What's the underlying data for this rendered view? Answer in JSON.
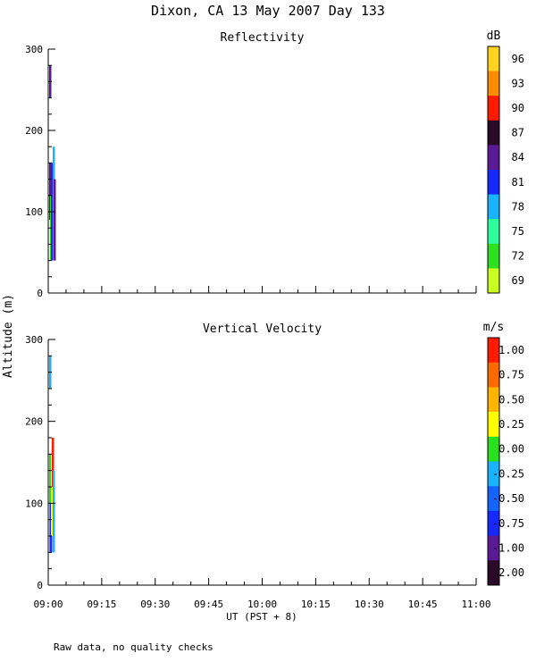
{
  "title": "Dixon, CA 13 May 2007  Day 133",
  "ylabel": "Altitude (m)",
  "xlabel": "UT  (PST + 8)",
  "footnote": "Raw data, no quality checks",
  "chart_data": [
    {
      "type": "heatmap",
      "title": "Reflectivity",
      "unit": "dB",
      "x_ticks": [
        "09:00",
        "09:15",
        "09:30",
        "09:45",
        "10:00",
        "10:15",
        "10:30",
        "10:45",
        "11:00"
      ],
      "xlim": [
        "09:00",
        "11:00"
      ],
      "ylim": [
        0,
        300
      ],
      "y_ticks": [
        0,
        100,
        200,
        300
      ],
      "colorbar": {
        "labels": [
          "96",
          "93",
          "90",
          "87",
          "84",
          "81",
          "78",
          "75",
          "72",
          "69"
        ],
        "colors": [
          "#ffd21e",
          "#ff8c00",
          "#ff1a00",
          "#2a0a28",
          "#5a1a96",
          "#1428ff",
          "#19b4ff",
          "#2dff9b",
          "#2de11e",
          "#c8ff1e"
        ]
      },
      "segments": [
        {
          "time": "09:00:30",
          "alt_bottom": 240,
          "alt_top": 280,
          "color": "#5a1a96"
        },
        {
          "time": "09:00:30",
          "alt_bottom": 90,
          "alt_top": 160,
          "color": "#5a1a96"
        },
        {
          "time": "09:00:45",
          "alt_bottom": 40,
          "alt_top": 120,
          "color": "#2de11e"
        },
        {
          "time": "09:01:00",
          "alt_bottom": 40,
          "alt_top": 160,
          "color": "#1428ff"
        },
        {
          "time": "09:01:30",
          "alt_bottom": 40,
          "alt_top": 180,
          "color": "#19b4ff"
        },
        {
          "time": "09:01:45",
          "alt_bottom": 40,
          "alt_top": 140,
          "color": "#5a1a96"
        }
      ]
    },
    {
      "type": "heatmap",
      "title": "Vertical Velocity",
      "unit": "m/s",
      "x_ticks": [
        "09:00",
        "09:15",
        "09:30",
        "09:45",
        "10:00",
        "10:15",
        "10:30",
        "10:45",
        "11:00"
      ],
      "xlim": [
        "09:00",
        "11:00"
      ],
      "ylim": [
        0,
        300
      ],
      "y_ticks": [
        0,
        100,
        200,
        300
      ],
      "colorbar": {
        "labels": [
          "1.00",
          "0.75",
          "0.50",
          "0.25",
          "0.00",
          "-0.25",
          "-0.50",
          "-0.75",
          "-1.00",
          "-2.00"
        ],
        "colors": [
          "#ff1a00",
          "#ff6a00",
          "#ffb400",
          "#ffff00",
          "#28e11e",
          "#19b4ff",
          "#1464ff",
          "#1428ff",
          "#5a1a96",
          "#2a0a28"
        ]
      },
      "segments": [
        {
          "time": "09:00:30",
          "alt_bottom": 240,
          "alt_top": 280,
          "color": "#19b4ff"
        },
        {
          "time": "09:00:30",
          "alt_bottom": 40,
          "alt_top": 160,
          "color": "#28e11e"
        },
        {
          "time": "09:00:45",
          "alt_bottom": 40,
          "alt_top": 100,
          "color": "#1428ff"
        },
        {
          "time": "09:01:00",
          "alt_bottom": 60,
          "alt_top": 170,
          "color": "#ffff00"
        },
        {
          "time": "09:01:15",
          "alt_bottom": 120,
          "alt_top": 180,
          "color": "#ff1a00"
        },
        {
          "time": "09:01:30",
          "alt_bottom": 40,
          "alt_top": 140,
          "color": "#19b4ff"
        }
      ]
    }
  ]
}
